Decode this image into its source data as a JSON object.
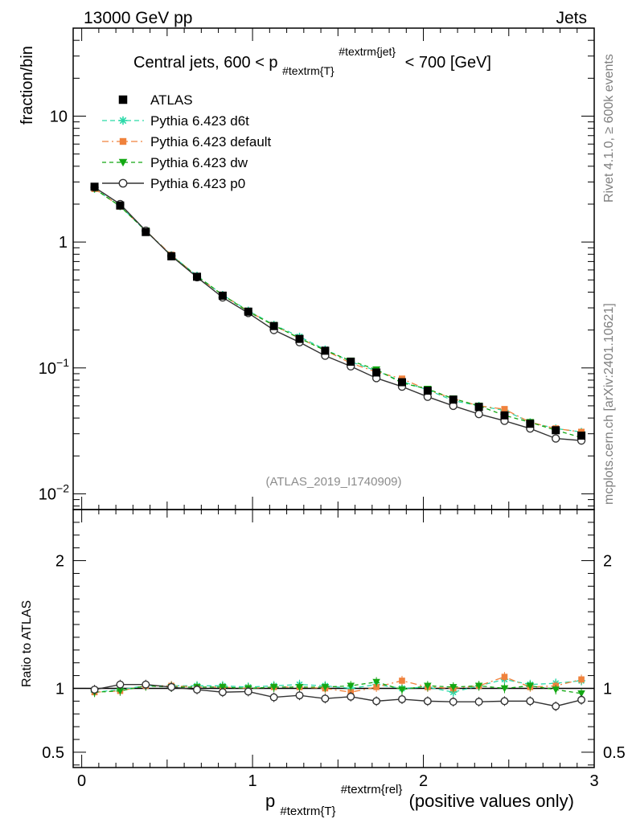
{
  "header": {
    "energy": "13000 GeV pp",
    "category": "Jets"
  },
  "side_labels": {
    "rivet": "Rivet 4.1.0, ≥ 600k events",
    "mcplots": "mcplots.cern.ch [arXiv:2401.10621]"
  },
  "colors": {
    "ATLAS": "#000000",
    "d6t": "#2ad9a8",
    "default": "#f0823c",
    "dw": "#13a813",
    "p0": "#333333"
  },
  "chart_data": [
    {
      "type": "line",
      "panel": "main",
      "title": "Central jets, 600 < p_{#textrm{T}}^{#textrm{jet}} < 700 [GeV]",
      "title_parts": {
        "prefix": "Central jets, 600 < p",
        "sub": "#textrm{T}",
        "sup": "#textrm{jet}",
        "suffix": "< 700 [GeV]"
      },
      "ylabel": "fraction/bin",
      "yscale": "log",
      "ylim": [
        0.0075,
        50
      ],
      "xlim": [
        -0.05,
        3.0
      ],
      "ytick_labels": [
        {
          "value": 10,
          "base": "10",
          "exp": ""
        },
        {
          "value": 1,
          "base": "1",
          "exp": ""
        },
        {
          "value": 0.1,
          "base": "10",
          "exp": "−1"
        },
        {
          "value": 0.01,
          "base": "10",
          "exp": "−2"
        }
      ],
      "watermark": "(ATLAS_2019_I1740909)",
      "legend_position": "top-left",
      "x": [
        0.075,
        0.225,
        0.375,
        0.525,
        0.675,
        0.825,
        0.975,
        1.125,
        1.275,
        1.425,
        1.575,
        1.725,
        1.875,
        2.025,
        2.175,
        2.325,
        2.475,
        2.625,
        2.775,
        2.925
      ],
      "series": [
        {
          "key": "ATLAS",
          "name": "ATLAS",
          "values": [
            2.75,
            1.95,
            1.2,
            0.77,
            0.53,
            0.375,
            0.28,
            0.215,
            0.17,
            0.137,
            0.112,
            0.092,
            0.077,
            0.066,
            0.056,
            0.049,
            0.042,
            0.036,
            0.032,
            0.029
          ]
        },
        {
          "key": "d6t",
          "name": "Pythia 6.423 d6t",
          "values": [
            2.65,
            1.93,
            1.22,
            0.785,
            0.54,
            0.38,
            0.285,
            0.22,
            0.177,
            0.14,
            0.112,
            0.095,
            0.078,
            0.067,
            0.055,
            0.05,
            0.046,
            0.037,
            0.033,
            0.031
          ]
        },
        {
          "key": "default",
          "name": "Pythia 6.423 default",
          "values": [
            2.65,
            1.92,
            1.23,
            0.79,
            0.535,
            0.38,
            0.282,
            0.218,
            0.172,
            0.138,
            0.109,
            0.093,
            0.082,
            0.067,
            0.057,
            0.05,
            0.047,
            0.037,
            0.033,
            0.031
          ]
        },
        {
          "key": "dw",
          "name": "Pythia 6.423 dw",
          "values": [
            2.65,
            1.92,
            1.23,
            0.78,
            0.535,
            0.38,
            0.28,
            0.218,
            0.172,
            0.138,
            0.114,
            0.097,
            0.076,
            0.068,
            0.057,
            0.05,
            0.042,
            0.037,
            0.032,
            0.028
          ]
        },
        {
          "key": "p0",
          "name": "Pythia 6.423 p0",
          "values": [
            2.72,
            2.0,
            1.23,
            0.775,
            0.525,
            0.363,
            0.273,
            0.2,
            0.16,
            0.125,
            0.103,
            0.083,
            0.071,
            0.059,
            0.05,
            0.043,
            0.038,
            0.033,
            0.0275,
            0.0265
          ]
        }
      ]
    },
    {
      "type": "line",
      "panel": "ratio",
      "ylabel": "Ratio to ATLAS",
      "ylim": [
        0.38,
        2.4
      ],
      "xlim": [
        -0.05,
        3.0
      ],
      "ytick_labels": [
        {
          "value": 2,
          "label": "2"
        },
        {
          "value": 1,
          "label": "1"
        },
        {
          "value": 0.5,
          "label": "0.5"
        }
      ],
      "xtick_labels": [
        {
          "value": 0,
          "label": "0"
        },
        {
          "value": 1,
          "label": "1"
        },
        {
          "value": 2,
          "label": "2"
        },
        {
          "value": 3,
          "label": "3"
        }
      ],
      "xlabel_parts": {
        "prefix": "p",
        "sub": "#textrm{T}",
        "sup": "#textrm{rel}",
        "suffix": "(positive values only)"
      },
      "x": [
        0.075,
        0.225,
        0.375,
        0.525,
        0.675,
        0.825,
        0.975,
        1.125,
        1.275,
        1.425,
        1.575,
        1.725,
        1.875,
        2.025,
        2.175,
        2.325,
        2.475,
        2.625,
        2.775,
        2.925
      ],
      "series": [
        {
          "key": "d6t",
          "name": "Pythia 6.423 d6t",
          "values": [
            0.97,
            0.99,
            1.02,
            1.02,
            1.02,
            1.02,
            1.01,
            1.02,
            1.03,
            1.02,
            1.0,
            1.03,
            1.0,
            1.01,
            0.97,
            1.02,
            1.07,
            1.03,
            1.04,
            1.06
          ]
        },
        {
          "key": "default",
          "name": "Pythia 6.423 default",
          "values": [
            0.97,
            0.98,
            1.02,
            1.02,
            1.01,
            1.01,
            1.0,
            1.01,
            1.01,
            1.0,
            0.97,
            1.01,
            1.06,
            1.01,
            1.0,
            1.02,
            1.09,
            1.01,
            1.02,
            1.07
          ]
        },
        {
          "key": "dw",
          "name": "Pythia 6.423 dw",
          "values": [
            0.97,
            0.98,
            1.02,
            1.01,
            1.01,
            1.01,
            1.0,
            1.01,
            1.01,
            1.01,
            1.02,
            1.05,
            0.99,
            1.02,
            1.01,
            1.02,
            1.0,
            1.02,
            0.99,
            0.96
          ]
        },
        {
          "key": "p0",
          "name": "Pythia 6.423 p0",
          "values": [
            0.99,
            1.03,
            1.03,
            1.01,
            0.99,
            0.97,
            0.975,
            0.93,
            0.945,
            0.92,
            0.935,
            0.9,
            0.915,
            0.9,
            0.895,
            0.895,
            0.9,
            0.9,
            0.86,
            0.91
          ]
        }
      ]
    }
  ]
}
